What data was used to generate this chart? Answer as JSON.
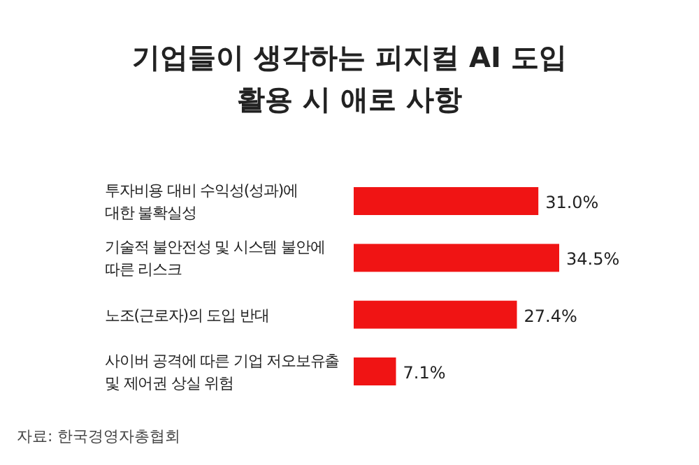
{
  "chart_data": {
    "type": "bar",
    "orientation": "horizontal",
    "title": "기업들이 생각하는 피지컬 AI 도입\n활용 시 애로 사항",
    "categories": [
      "투자비용 대비 수익성(성과)에\n대한 불확실성",
      "기술적 불안전성 및 시스템 불안에\n따른 리스크",
      "노조(근로자)의 도입 반대",
      "사이버 공격에 따른 기업 저오보유출\n및 제어권 상실 위험"
    ],
    "values": [
      31.0,
      34.5,
      27.4,
      7.1
    ],
    "value_labels": [
      "31.0%",
      "34.5%",
      "27.4%",
      "7.1%"
    ],
    "color": "#f01414",
    "annotations": [
      "자료: 한국경영자총협회"
    ]
  }
}
